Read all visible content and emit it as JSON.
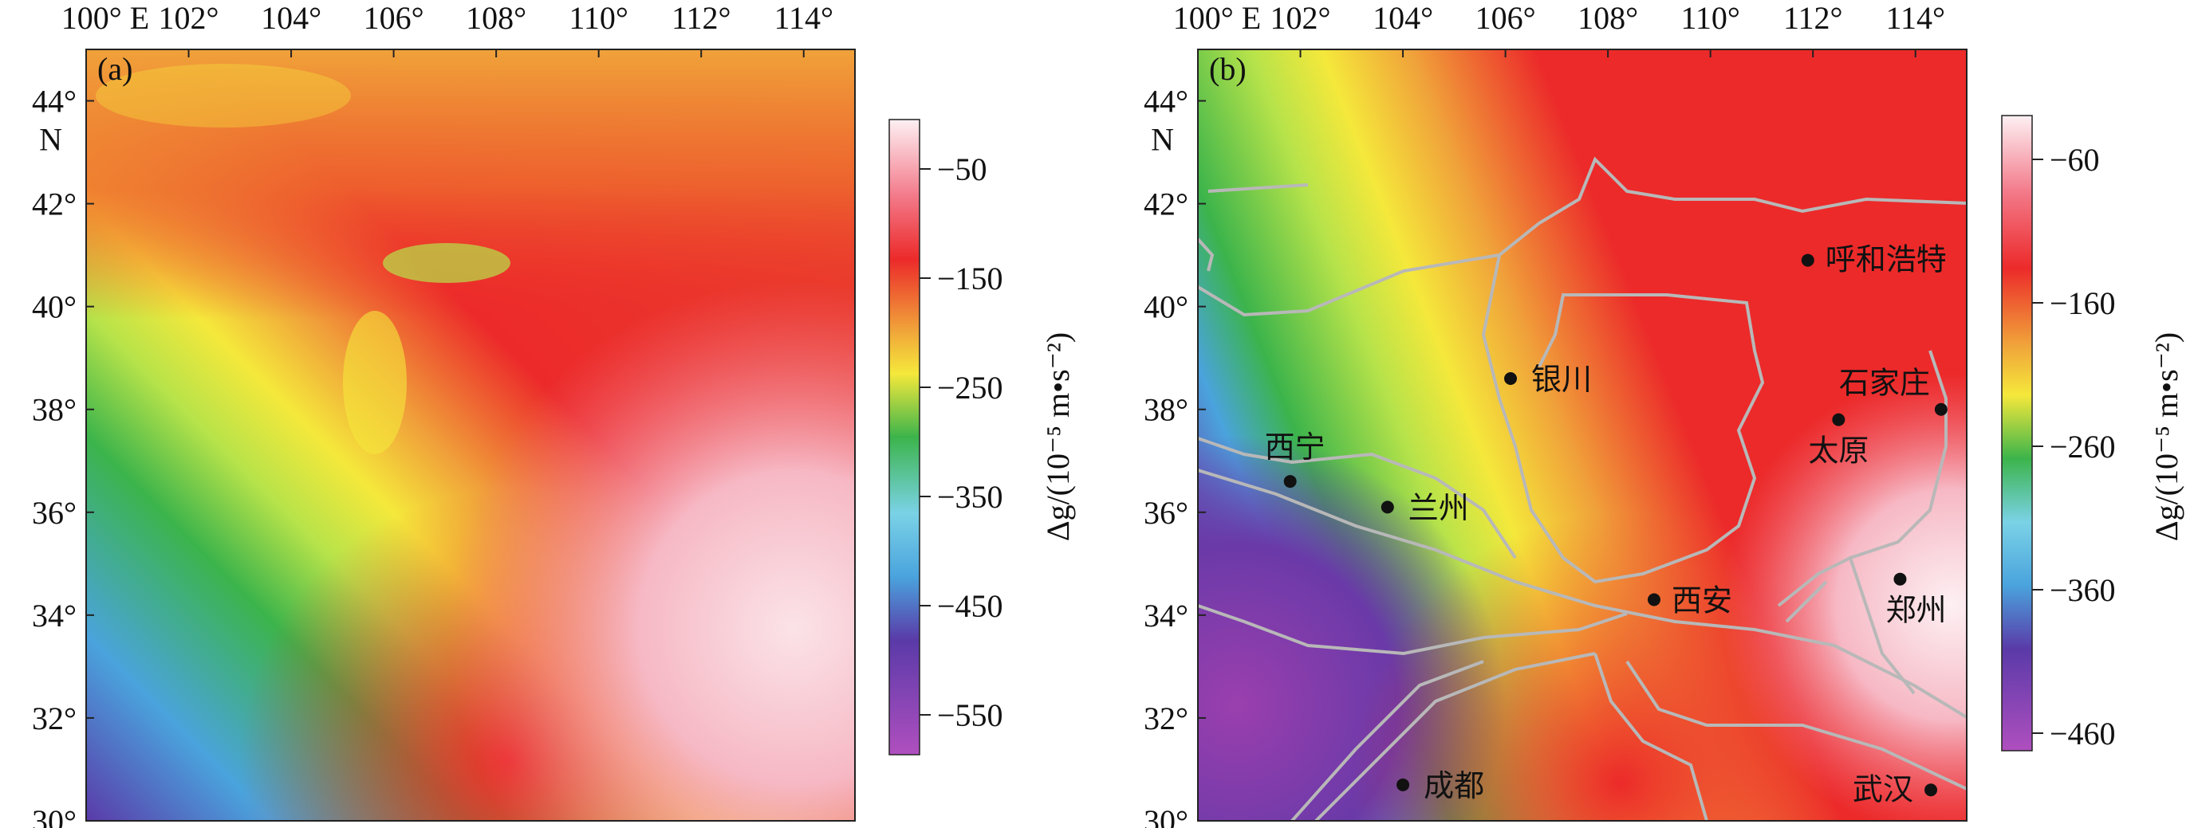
{
  "figure": {
    "colorbar_title_a": "Δg/(10⁻⁵ m•s⁻²)",
    "colorbar_title_b": "Δg/(10⁻⁵ m•s⁻²)"
  },
  "axes": {
    "x_ticks": [
      "100° E",
      "102°",
      "104°",
      "106°",
      "108°",
      "110°",
      "112°",
      "114°"
    ],
    "y_ticks": [
      "30°",
      "32°",
      "34°",
      "36°",
      "38°",
      "40°",
      "42°",
      "44°"
    ],
    "n_label": "N"
  },
  "panels": [
    {
      "label": "(a)",
      "colorbar_ticks": [
        "−50",
        "−150",
        "−250",
        "−350",
        "−450",
        "−550"
      ]
    },
    {
      "label": "(b)",
      "colorbar_ticks": [
        "−60",
        "−160",
        "−260",
        "−360",
        "−460"
      ]
    }
  ],
  "cities": [
    {
      "name": "呼和浩特",
      "lon": 111.9,
      "lat": 40.9
    },
    {
      "name": "银川",
      "lon": 106.1,
      "lat": 38.6
    },
    {
      "name": "石家庄",
      "lon": 114.5,
      "lat": 38.0
    },
    {
      "name": "太原",
      "lon": 112.5,
      "lat": 37.8
    },
    {
      "name": "西宁",
      "lon": 101.8,
      "lat": 36.6
    },
    {
      "name": "兰州",
      "lon": 103.7,
      "lat": 36.1
    },
    {
      "name": "郑州",
      "lon": 113.7,
      "lat": 34.7
    },
    {
      "name": "西安",
      "lon": 108.9,
      "lat": 34.3
    },
    {
      "name": "成都",
      "lon": 104.0,
      "lat": 30.7
    },
    {
      "name": "武汉",
      "lon": 114.3,
      "lat": 30.6
    }
  ],
  "colors": {
    "scale": [
      "#9b3fae",
      "#5a3aa8",
      "#4aa3dd",
      "#7ad2e6",
      "#3cb44b",
      "#b7e34a",
      "#f5e83b",
      "#f0a23a",
      "#e8452e",
      "#ec2a2a",
      "#f37a8a",
      "#fbe3e8"
    ],
    "boundary": "#b8b8b8",
    "city_dot": "#111111"
  }
}
